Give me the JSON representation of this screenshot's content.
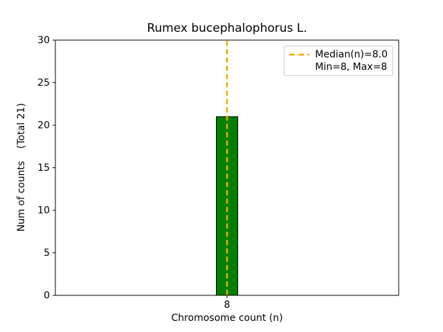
{
  "chart_data": {
    "type": "bar",
    "title": "Rumex bucephalophorus L.",
    "xlabel": "Chromosome count (n)",
    "ylabel": "Num of counts    (Total 21)",
    "categories": [
      "8"
    ],
    "values": [
      21
    ],
    "ylim": [
      0,
      30
    ],
    "yticks": [
      0,
      5,
      10,
      15,
      20,
      25,
      30
    ],
    "grid": false,
    "bar_color": "#008000",
    "bar_edge_color": "#000000",
    "median_line": {
      "at_category": "8",
      "value": 8.0,
      "color": "#FFA500",
      "style": "dashed"
    },
    "legend": {
      "position": "upper right",
      "entries": [
        {
          "label": "Median(n)=8.0",
          "marker": "dashed-line",
          "marker_color": "#FFA500"
        },
        {
          "label": "Min=8, Max=8",
          "marker": "none",
          "marker_color": ""
        }
      ]
    }
  }
}
